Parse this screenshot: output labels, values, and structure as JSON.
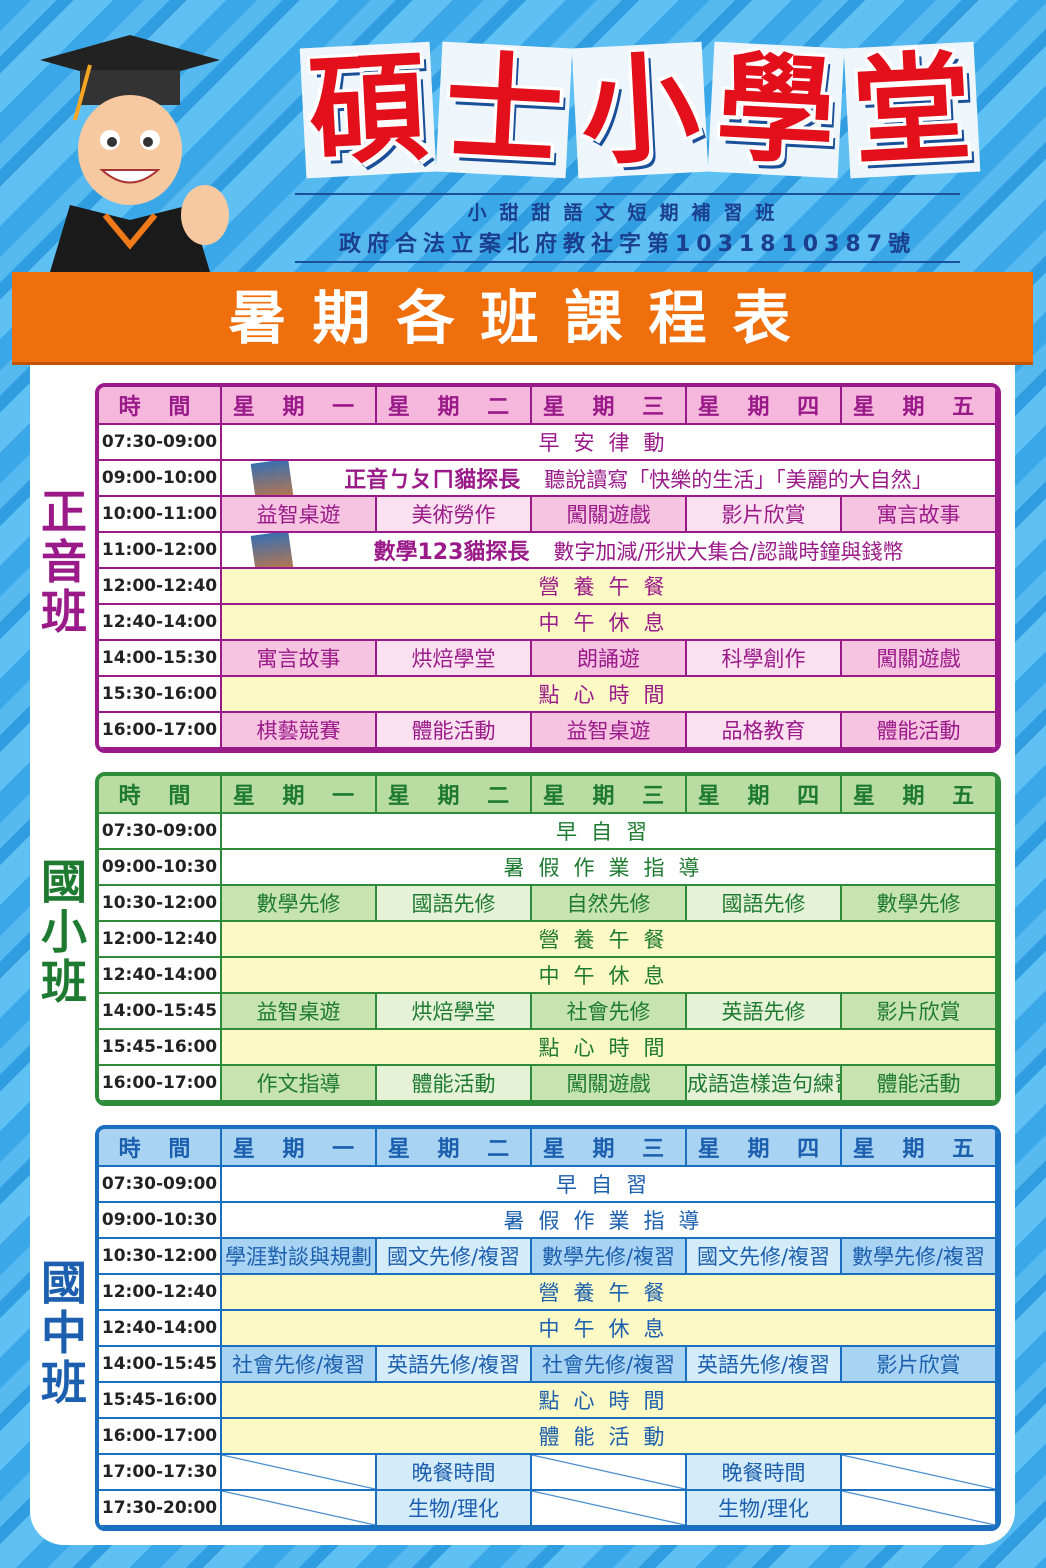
{
  "title": [
    "碩",
    "士",
    "小",
    "學",
    "堂"
  ],
  "subtitle1": "小甜甜語文短期補習班",
  "subtitle2": "政府合法立案北府教社字第1031810387號",
  "banner": "暑期各班課程表",
  "colors": {
    "magenta": "#9b1a8a",
    "green": "#2e8b3a",
    "blue": "#1a6fc0",
    "orange": "#ef6f0c",
    "red": "#e3101c"
  },
  "headers": [
    "時 間",
    "星 期 一",
    "星 期 二",
    "星 期 三",
    "星 期 四",
    "星 期 五"
  ],
  "classes": [
    {
      "label": "正音班",
      "theme": "mag",
      "rows": [
        {
          "time": "07:30-09:00",
          "span": "早安律動",
          "bg": "w"
        },
        {
          "time": "09:00-10:00",
          "span_parts": [
            "正音ㄅㄆㄇ貓探長",
            "聽說讀寫「快樂的生活」「美麗的大自然」"
          ],
          "bg": "w",
          "book": true
        },
        {
          "time": "10:00-11:00",
          "cells": [
            "益智桌遊",
            "美術勞作",
            "闖關遊戲",
            "影片欣賞",
            "寓言故事"
          ]
        },
        {
          "time": "11:00-12:00",
          "span_parts": [
            "數學123貓探長",
            "數字加減/形狀大集合/認識時鐘與錢幣"
          ],
          "bg": "w",
          "book": true
        },
        {
          "time": "12:00-12:40",
          "span": "營養午餐",
          "bg": "y"
        },
        {
          "time": "12:40-14:00",
          "span": "中午休息",
          "bg": "y"
        },
        {
          "time": "14:00-15:30",
          "cells": [
            "寓言故事",
            "烘焙學堂",
            "朗誦遊",
            "科學創作",
            "闖關遊戲"
          ]
        },
        {
          "time": "15:30-16:00",
          "span": "點心時間",
          "bg": "y"
        },
        {
          "time": "16:00-17:00",
          "cells": [
            "棋藝競賽",
            "體能活動",
            "益智桌遊",
            "品格教育",
            "體能活動"
          ]
        }
      ]
    },
    {
      "label": "國小班",
      "theme": "grn",
      "rows": [
        {
          "time": "07:30-09:00",
          "span": "早自習",
          "bg": "w"
        },
        {
          "time": "09:00-10:30",
          "span": "暑假作業指導",
          "bg": "w"
        },
        {
          "time": "10:30-12:00",
          "cells": [
            "數學先修",
            "國語先修",
            "自然先修",
            "國語先修",
            "數學先修"
          ]
        },
        {
          "time": "12:00-12:40",
          "span": "營養午餐",
          "bg": "y"
        },
        {
          "time": "12:40-14:00",
          "span": "中午休息",
          "bg": "y"
        },
        {
          "time": "14:00-15:45",
          "cells": [
            "益智桌遊",
            "烘焙學堂",
            "社會先修",
            "英語先修",
            "影片欣賞"
          ]
        },
        {
          "time": "15:45-16:00",
          "span": "點心時間",
          "bg": "y"
        },
        {
          "time": "16:00-17:00",
          "cells": [
            "作文指導",
            "體能活動",
            "闖關遊戲",
            "成語造樣造句練習",
            "體能活動"
          ]
        }
      ]
    },
    {
      "label": "國中班",
      "theme": "blu",
      "rows": [
        {
          "time": "07:30-09:00",
          "span": "早自習",
          "bg": "w"
        },
        {
          "time": "09:00-10:30",
          "span": "暑假作業指導",
          "bg": "w"
        },
        {
          "time": "10:30-12:00",
          "cells": [
            "學涯對談與規劃",
            "國文先修/複習",
            "數學先修/複習",
            "國文先修/複習",
            "數學先修/複習"
          ]
        },
        {
          "time": "12:00-12:40",
          "span": "營養午餐",
          "bg": "y"
        },
        {
          "time": "12:40-14:00",
          "span": "中午休息",
          "bg": "y"
        },
        {
          "time": "14:00-15:45",
          "cells": [
            "社會先修/複習",
            "英語先修/複習",
            "社會先修/複習",
            "英語先修/複習",
            "影片欣賞"
          ]
        },
        {
          "time": "15:45-16:00",
          "span": "點心時間",
          "bg": "y"
        },
        {
          "time": "16:00-17:00",
          "span": "體能活動",
          "bg": "y"
        },
        {
          "time": "17:00-17:30",
          "cells": [
            null,
            "晚餐時間",
            null,
            "晚餐時間",
            null
          ]
        },
        {
          "time": "17:30-20:00",
          "cells": [
            null,
            "生物/理化",
            null,
            "生物/理化",
            null
          ]
        }
      ]
    }
  ]
}
